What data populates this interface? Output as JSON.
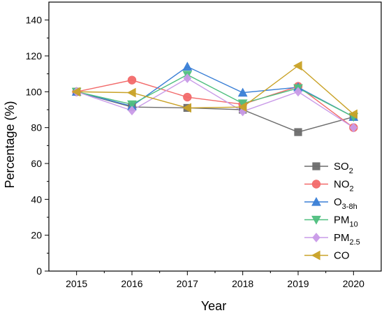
{
  "chart_data": {
    "type": "line",
    "x": [
      2015,
      2016,
      2017,
      2018,
      2019,
      2020
    ],
    "xlabel": "Year",
    "ylabel": "Percentage (%)",
    "ylim": [
      0,
      150
    ],
    "yticks": [
      0,
      20,
      40,
      60,
      80,
      100,
      120,
      140
    ],
    "xlim": [
      2014.5,
      2020.5
    ],
    "grid": false,
    "legend_position": "bottom-right",
    "series": [
      {
        "name": "SO",
        "sub": "2",
        "color": "#6d6d6d",
        "marker": "square",
        "values": [
          100,
          91.5,
          91,
          90,
          77.5,
          86
        ]
      },
      {
        "name": "NO",
        "sub": "2",
        "color": "#f26a6a",
        "marker": "circle",
        "values": [
          100,
          106.5,
          97,
          93,
          103,
          80
        ]
      },
      {
        "name": "O",
        "sub": "3-8h",
        "color": "#3a7fd6",
        "marker": "triangle-up",
        "values": [
          100,
          92,
          114,
          99.5,
          102.5,
          86
        ]
      },
      {
        "name": "PM",
        "sub": "10",
        "color": "#4fbf7f",
        "marker": "triangle-down",
        "values": [
          100,
          93,
          109.5,
          93.5,
          102,
          86
        ]
      },
      {
        "name": "PM",
        "sub": "2.5",
        "color": "#c99be8",
        "marker": "diamond",
        "values": [
          100,
          89.5,
          107.5,
          89,
          100,
          80
        ]
      },
      {
        "name": "CO",
        "sub": "",
        "color": "#c9a227",
        "marker": "triangle-left",
        "values": [
          100,
          99.5,
          91,
          91.5,
          114.5,
          87.5
        ]
      }
    ]
  }
}
